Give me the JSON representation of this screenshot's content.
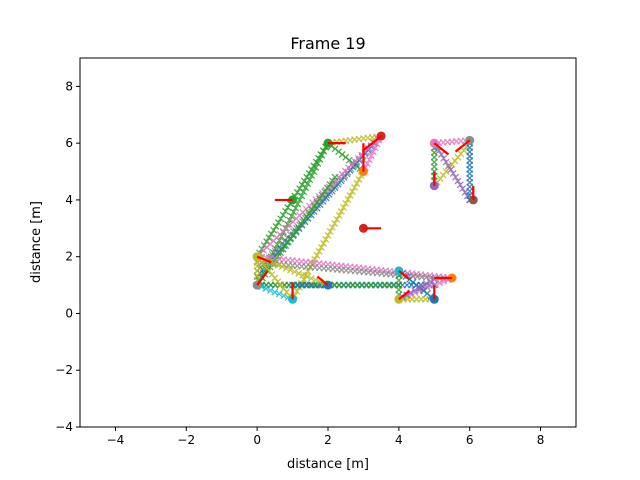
{
  "chart_data": {
    "type": "scatter",
    "title": "Frame 19",
    "xlabel": "distance [m]",
    "ylabel": "distance [m]",
    "xlim": [
      -5,
      9
    ],
    "ylim": [
      -4,
      9
    ],
    "xticks": [
      -4,
      -2,
      0,
      2,
      4,
      6,
      8
    ],
    "yticks": [
      -4,
      -2,
      0,
      2,
      4,
      6,
      8
    ],
    "grid": false,
    "links": [
      {
        "from": [
          0,
          2
        ],
        "to": [
          2,
          6
        ],
        "color": "#2ca02c"
      },
      {
        "from": [
          0,
          1
        ],
        "to": [
          2,
          6
        ],
        "color": "#2ca02c"
      },
      {
        "from": [
          2,
          6
        ],
        "to": [
          3.5,
          6.25
        ],
        "color": "#bcbd22"
      },
      {
        "from": [
          2,
          6
        ],
        "to": [
          3,
          5
        ],
        "color": "#2ca02c"
      },
      {
        "from": [
          0,
          1.5
        ],
        "to": [
          3.5,
          6.25
        ],
        "color": "#8c8c8c"
      },
      {
        "from": [
          0,
          1.3
        ],
        "to": [
          3.3,
          6.0
        ],
        "color": "#1f77b4"
      },
      {
        "from": [
          0,
          2
        ],
        "to": [
          3.5,
          6.25
        ],
        "color": "#e377c2"
      },
      {
        "from": [
          1,
          0.5
        ],
        "to": [
          3,
          5
        ],
        "color": "#bcbd22"
      },
      {
        "from": [
          0,
          1
        ],
        "to": [
          2.2,
          4.8
        ],
        "color": "#2ca02c"
      },
      {
        "from": [
          0,
          2
        ],
        "to": [
          5.5,
          1.25
        ],
        "color": "#e377c2"
      },
      {
        "from": [
          0,
          1.8
        ],
        "to": [
          5.4,
          1.2
        ],
        "color": "#8c8c8c"
      },
      {
        "from": [
          0,
          1
        ],
        "to": [
          5,
          1
        ],
        "color": "#1f77b4"
      },
      {
        "from": [
          0,
          1
        ],
        "to": [
          4,
          1
        ],
        "color": "#2ca02c"
      },
      {
        "from": [
          0,
          1
        ],
        "to": [
          1,
          0.5
        ],
        "color": "#17becf"
      },
      {
        "from": [
          0,
          2
        ],
        "to": [
          1,
          0.5
        ],
        "color": "#bcbd22"
      },
      {
        "from": [
          0,
          1
        ],
        "to": [
          0,
          2
        ],
        "color": "#bcbd22"
      },
      {
        "from": [
          1,
          1
        ],
        "to": [
          2,
          1
        ],
        "color": "#1f77b4"
      },
      {
        "from": [
          0,
          2
        ],
        "to": [
          2,
          1
        ],
        "color": "#bcbd22"
      },
      {
        "from": [
          4,
          0.5
        ],
        "to": [
          5.5,
          1.25
        ],
        "color": "#e377c2"
      },
      {
        "from": [
          4,
          0.5
        ],
        "to": [
          5,
          0.5
        ],
        "color": "#bcbd22"
      },
      {
        "from": [
          4,
          1.5
        ],
        "to": [
          5,
          0.5
        ],
        "color": "#1f77b4"
      },
      {
        "from": [
          4,
          1.5
        ],
        "to": [
          4,
          0.5
        ],
        "color": "#2ca02c"
      },
      {
        "from": [
          4,
          0.5
        ],
        "to": [
          5,
          1.2
        ],
        "color": "#9467bd"
      },
      {
        "from": [
          5,
          6
        ],
        "to": [
          5,
          4.5
        ],
        "color": "#2ca02c"
      },
      {
        "from": [
          5,
          4.5
        ],
        "to": [
          6,
          6
        ],
        "color": "#bcbd22"
      },
      {
        "from": [
          5,
          6
        ],
        "to": [
          6,
          4
        ],
        "color": "#9467bd"
      },
      {
        "from": [
          6,
          6
        ],
        "to": [
          6,
          4
        ],
        "color": "#1f77b4"
      },
      {
        "from": [
          5,
          6
        ],
        "to": [
          6,
          6.1
        ],
        "color": "#e377c2"
      },
      {
        "from": [
          3,
          5
        ],
        "to": [
          3.5,
          6.25
        ],
        "color": "#e377c2"
      }
    ],
    "points": [
      {
        "x": 3.5,
        "y": 6.25,
        "color": "#d62728",
        "v": [
          -0.5,
          -0.5
        ]
      },
      {
        "x": 3,
        "y": 5,
        "color": "#ff7f0e",
        "v": [
          0,
          1
        ]
      },
      {
        "x": 2,
        "y": 6,
        "color": "#2ca02c",
        "v": [
          0.5,
          0
        ]
      },
      {
        "x": 1,
        "y": 4,
        "color": "#2ca02c",
        "v": [
          -0.5,
          0
        ]
      },
      {
        "x": 5,
        "y": 6,
        "color": "#e377c2",
        "v": [
          0.4,
          -0.4
        ]
      },
      {
        "x": 6,
        "y": 6.1,
        "color": "#8c8c8c",
        "v": [
          -0.4,
          -0.4
        ]
      },
      {
        "x": 5,
        "y": 4.5,
        "color": "#9467bd",
        "v": [
          0,
          0.5
        ]
      },
      {
        "x": 6.1,
        "y": 4,
        "color": "#8c564b",
        "v": [
          0,
          0.5
        ]
      },
      {
        "x": 3,
        "y": 3,
        "color": "#d62728",
        "v": [
          0.5,
          0
        ]
      },
      {
        "x": 0,
        "y": 2,
        "color": "#bcbd22",
        "v": [
          0.4,
          -0.2
        ]
      },
      {
        "x": 0,
        "y": 1,
        "color": "#8c8c8c",
        "v": [
          0.3,
          0.5
        ]
      },
      {
        "x": 1,
        "y": 0.5,
        "color": "#17becf",
        "v": [
          0,
          0.6
        ]
      },
      {
        "x": 2,
        "y": 1,
        "color": "#1f77b4",
        "v": [
          -0.3,
          0.3
        ]
      },
      {
        "x": 4,
        "y": 1.5,
        "color": "#17becf",
        "v": [
          0.3,
          -0.3
        ]
      },
      {
        "x": 5.5,
        "y": 1.25,
        "color": "#ff7f0e",
        "v": [
          -0.5,
          0
        ]
      },
      {
        "x": 4,
        "y": 0.5,
        "color": "#bcbd22",
        "v": [
          0.3,
          0.3
        ]
      },
      {
        "x": 5,
        "y": 0.5,
        "color": "#1f77b4",
        "v": [
          0,
          0.5
        ]
      }
    ]
  }
}
